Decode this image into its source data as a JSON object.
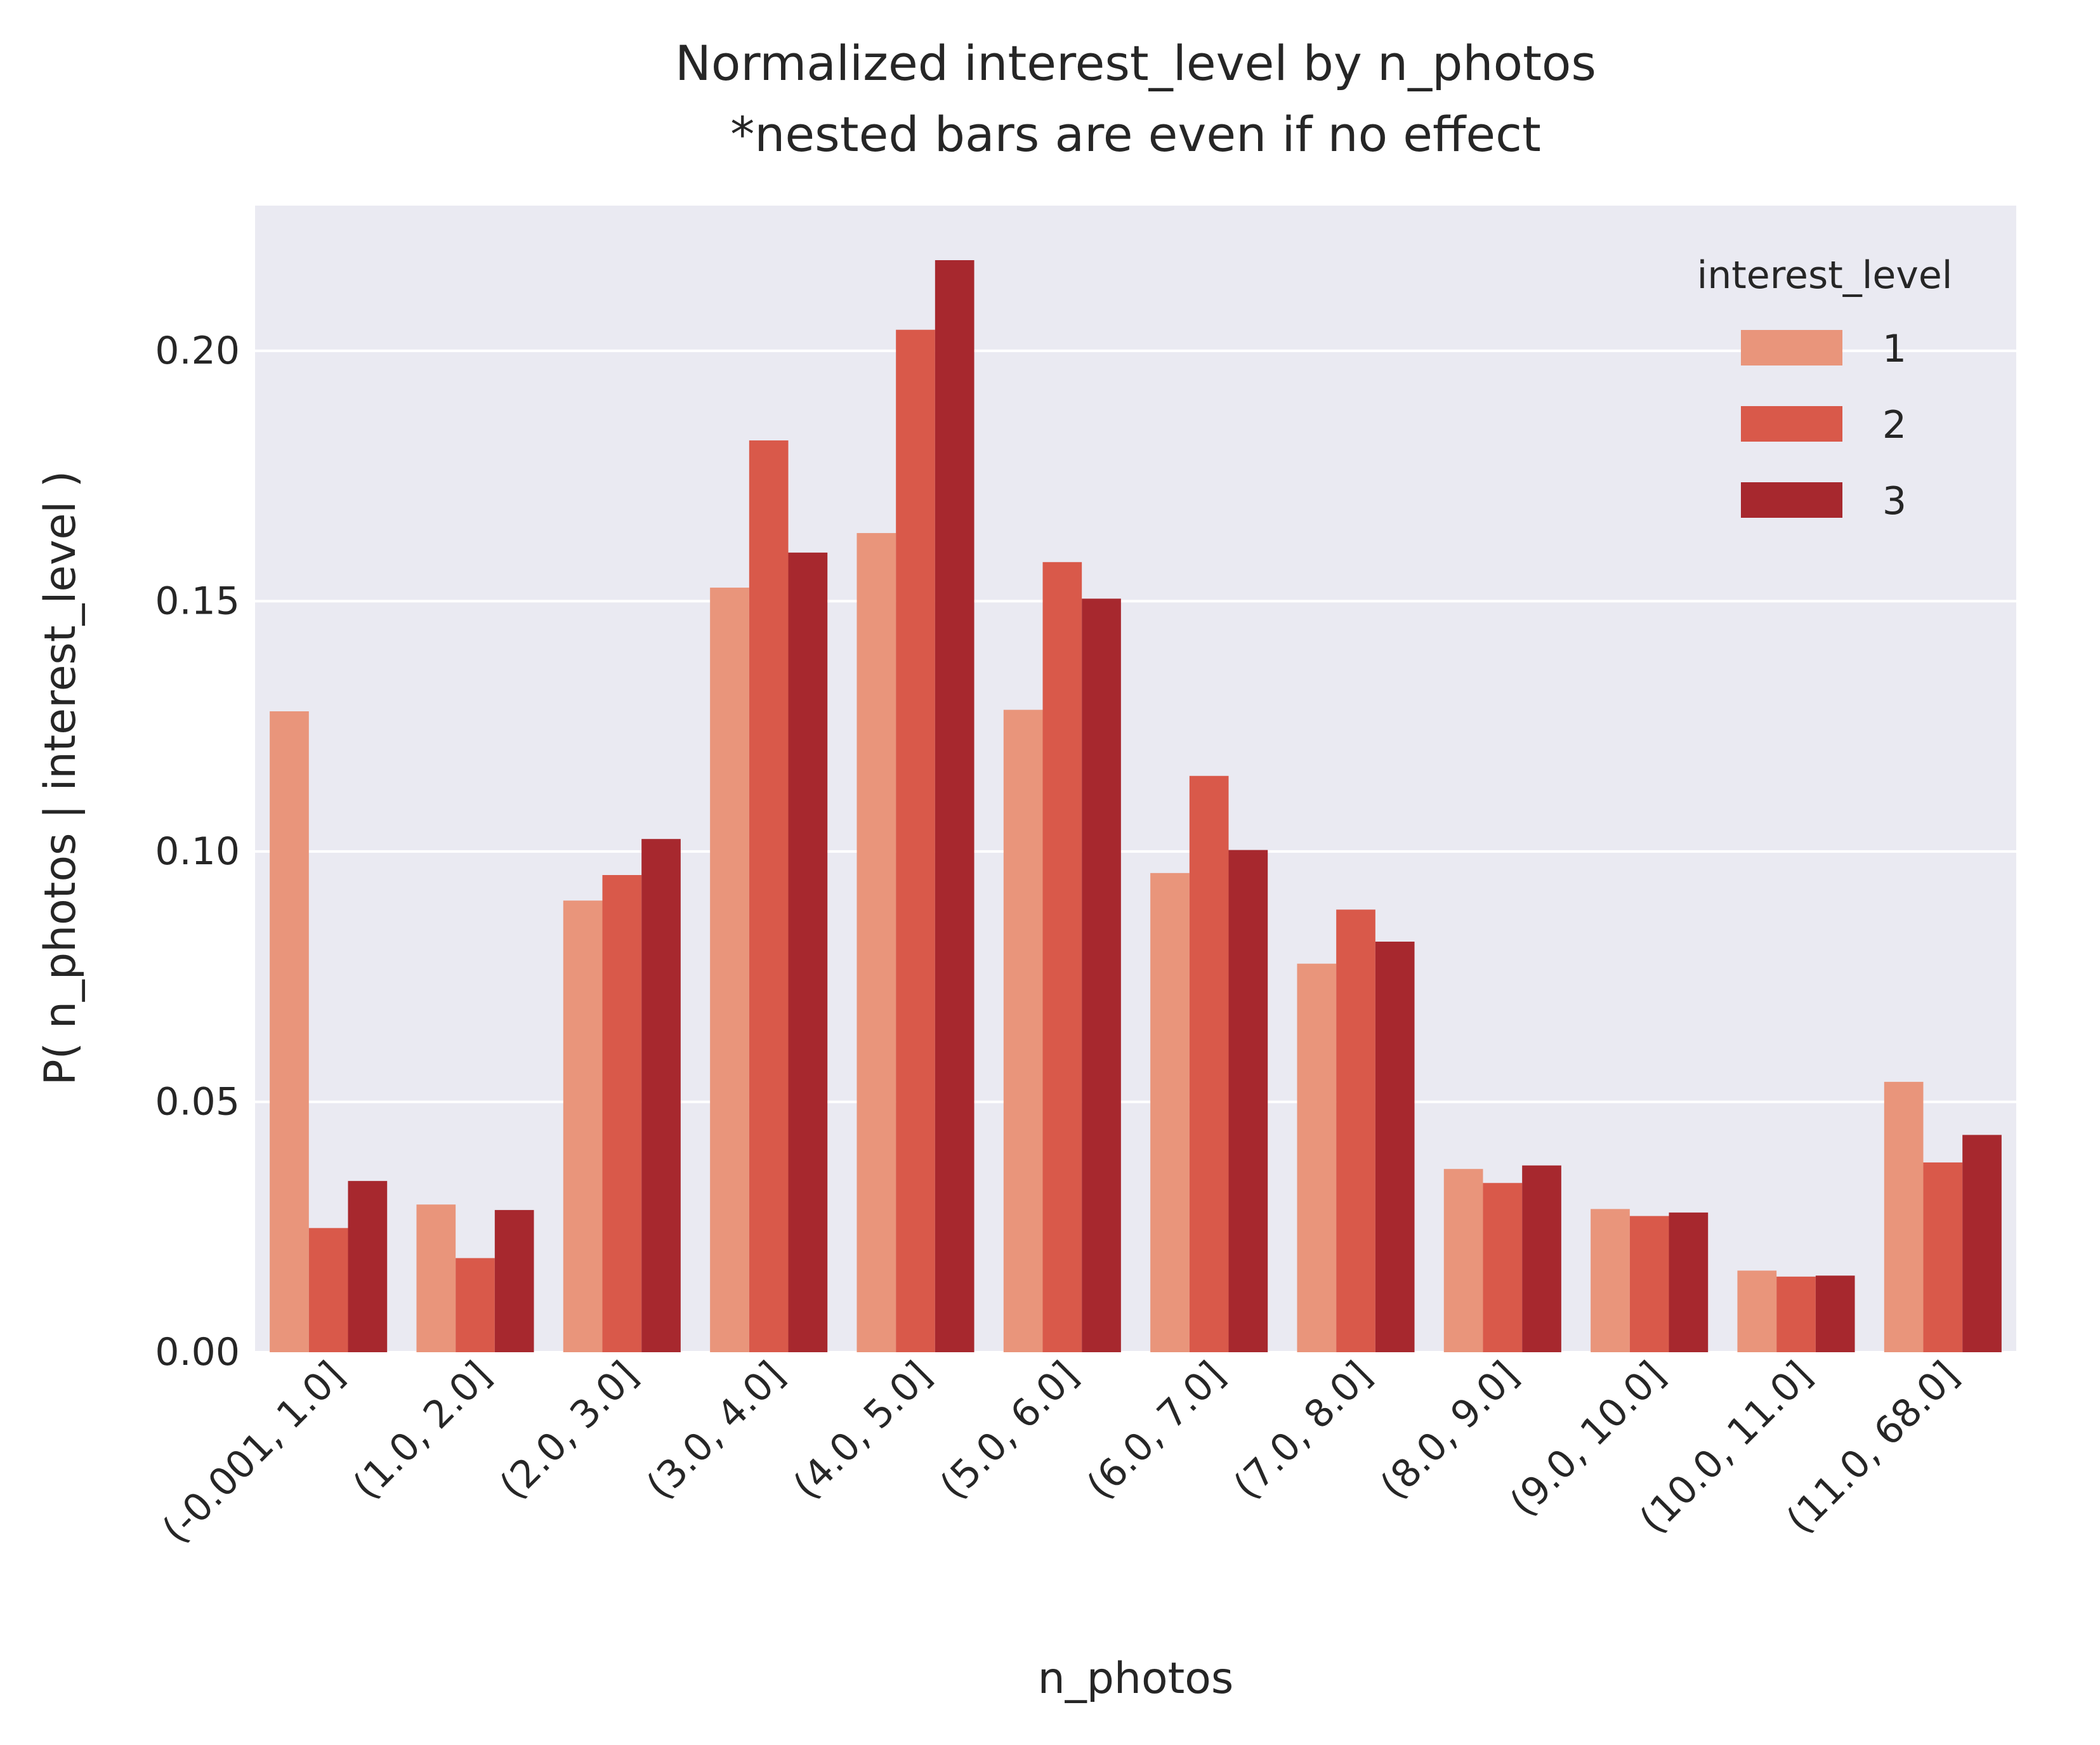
{
  "chart_data": {
    "type": "bar",
    "title": "Normalized interest_level by n_photos",
    "subtitle": "*nested bars are even if no effect",
    "xlabel": "n_photos",
    "ylabel": "P( n_photos | interest_level )",
    "ylim": [
      0,
      0.229
    ],
    "yticks": [
      0.0,
      0.05,
      0.1,
      0.15,
      0.2
    ],
    "ytick_labels": [
      "0.00",
      "0.05",
      "0.10",
      "0.15",
      "0.20"
    ],
    "grid": "horizontal",
    "legend_position": "top-right",
    "legend_title": "interest_level",
    "categories": [
      "(-0.001, 1.0]",
      "(1.0, 2.0]",
      "(2.0, 3.0]",
      "(3.0, 4.0]",
      "(4.0, 5.0]",
      "(5.0, 6.0]",
      "(6.0, 7.0]",
      "(7.0, 8.0]",
      "(8.0, 9.0]",
      "(9.0, 10.0]",
      "(10.0, 11.0]",
      "(11.0, 68.0]"
    ],
    "series": [
      {
        "name": "1",
        "color": "#e9957b",
        "values": [
          0.128,
          0.0295,
          0.0902,
          0.1527,
          0.1636,
          0.1283,
          0.0957,
          0.0776,
          0.0366,
          0.0286,
          0.0163,
          0.054
        ]
      },
      {
        "name": "2",
        "color": "#d9594a",
        "values": [
          0.0248,
          0.0188,
          0.0953,
          0.1821,
          0.2042,
          0.1578,
          0.1151,
          0.0884,
          0.0338,
          0.0272,
          0.0151,
          0.0379
        ]
      },
      {
        "name": "3",
        "color": "#a7282e",
        "values": [
          0.0342,
          0.0284,
          0.1025,
          0.1597,
          0.2181,
          0.1505,
          0.1003,
          0.082,
          0.0373,
          0.0279,
          0.0153,
          0.0434
        ]
      }
    ]
  },
  "style": {
    "plot_background": "#eaeaf2",
    "grid_color": "#ffffff",
    "text_color": "#262626"
  }
}
